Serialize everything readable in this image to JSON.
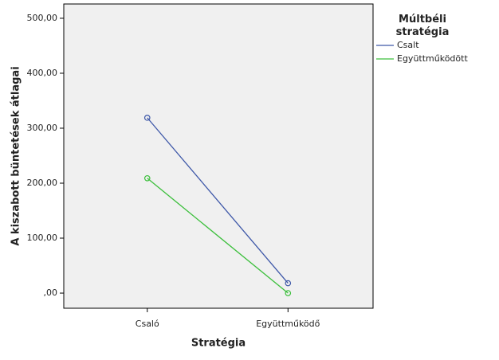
{
  "chart_data": {
    "type": "line",
    "x_label": "Stratégia",
    "y_label": "A kiszabott büntetések átlagai",
    "legend_title": "Múltbéli stratégia",
    "categories": [
      "Csaló",
      "Együttműködő"
    ],
    "series": [
      {
        "name": "Csalt",
        "color": "#3d57a8",
        "values": [
          319,
          18
        ]
      },
      {
        "name": "Együttműködött",
        "color": "#3cbf3c",
        "values": [
          209,
          0
        ]
      }
    ],
    "ylim": [
      -27.5,
      526
    ],
    "yticks": [
      {
        "value": 0,
        "label": ",00"
      },
      {
        "value": 100,
        "label": "100,00"
      },
      {
        "value": 200,
        "label": "200,00"
      },
      {
        "value": 300,
        "label": "300,00"
      },
      {
        "value": 400,
        "label": "400,00"
      },
      {
        "value": 500,
        "label": "500,00"
      }
    ],
    "legend_position": "upper right"
  }
}
